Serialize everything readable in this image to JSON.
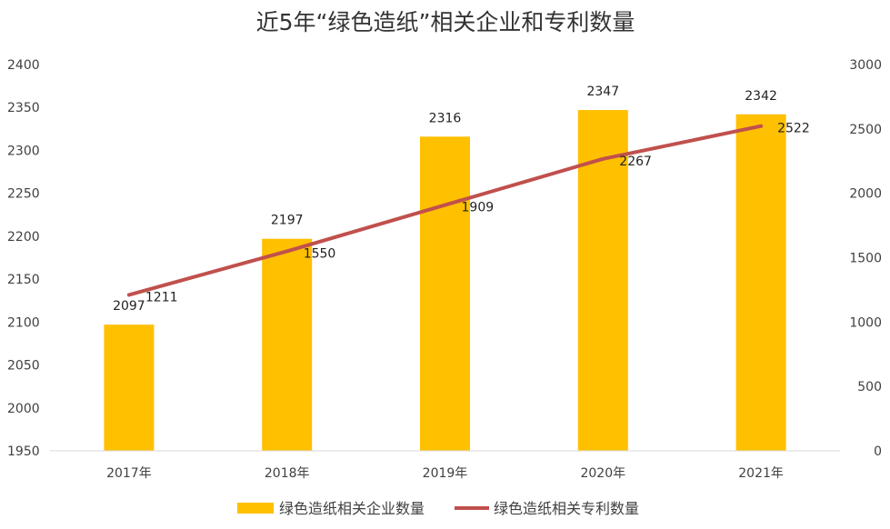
{
  "chart_data": {
    "type": "bar",
    "title": "近5年“绿色造纸”相关企业和专利数量",
    "categories": [
      "2017年",
      "2018年",
      "2019年",
      "2020年",
      "2021年"
    ],
    "series": [
      {
        "name": "绿色造纸相关企业数量",
        "type": "bar",
        "axis": "left",
        "color": "#FFC000",
        "values": [
          2097,
          2197,
          2316,
          2347,
          2342
        ]
      },
      {
        "name": "绿色造纸相关专利数量",
        "type": "line",
        "axis": "right",
        "color": "#C0504D",
        "values": [
          1211,
          1550,
          1909,
          2267,
          2522
        ]
      }
    ],
    "y_left": {
      "min": 1950,
      "max": 2400,
      "step": 50,
      "ticks": [
        "1950",
        "2000",
        "2050",
        "2100",
        "2150",
        "2200",
        "2250",
        "2300",
        "2350",
        "2400"
      ]
    },
    "y_right": {
      "min": 0,
      "max": 3000,
      "step": 500,
      "ticks": [
        "0",
        "500",
        "1000",
        "1500",
        "2000",
        "2500",
        "3000"
      ]
    },
    "grid": false,
    "legend_position": "bottom"
  }
}
